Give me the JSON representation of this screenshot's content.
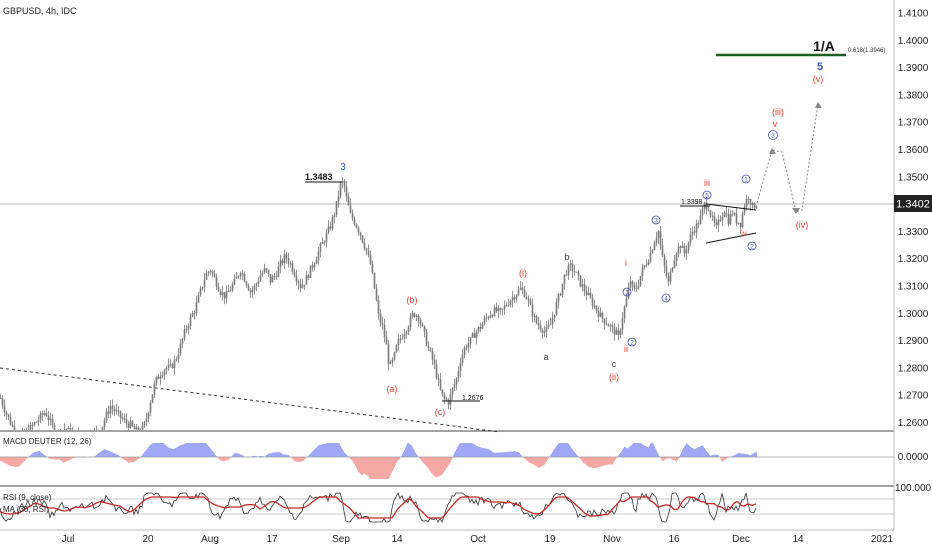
{
  "header": {
    "symbol_line": "GBPUSD, 4h, IDC"
  },
  "price_axis": {
    "ticks": [
      "1.4100",
      "1.4000",
      "1.3900",
      "1.3800",
      "1.3700",
      "1.3600",
      "1.3500",
      "1.3400",
      "1.3300",
      "1.3200",
      "1.3100",
      "1.3000",
      "1.2900",
      "1.2800",
      "1.2700",
      "1.2600"
    ],
    "current_price": "1.3402"
  },
  "time_axis": {
    "ticks": [
      "Jul",
      "20",
      "Aug",
      "17",
      "Sep",
      "14",
      "Oct",
      "19",
      "Nov",
      "16",
      "Dec",
      "14",
      "2021"
    ]
  },
  "macd_pane": {
    "label": "MACD DEUTER (12, 26)",
    "zero_label": "0.0000"
  },
  "rsi_pane": {
    "label": "RSI (9, close)",
    "ma_label": "MA (30, RSI)",
    "level_label": "100.000"
  },
  "annotations": {
    "fib_target": "1/A",
    "fib_text": "0.618(1.3946)",
    "wave_5": "5",
    "wave_v_paren": "(v)",
    "wave_iii_paren": "(iii)",
    "wave_v_small": "v",
    "wave_iv_paren": "(iv)",
    "wave_iii_roman": "iii",
    "wave_iv_roman": "iv",
    "wave_i_roman": "i",
    "wave_ii_roman": "ii",
    "wave_ii_paren": "(ii)",
    "wave_i_paren": "(i)",
    "wave_a_paren": "(a)",
    "wave_b_paren": "(b)",
    "wave_c_paren": "(c)",
    "wave_a": "a",
    "wave_b": "b",
    "wave_c": "c",
    "wave_3": "3",
    "circ_1": "1",
    "circ_2": "2",
    "circ_3": "3",
    "circ_4": "4",
    "circ_5": "5",
    "circ_3b": "3",
    "circ_2b": "2",
    "circ_1b": "1",
    "price_13483": "1.3483",
    "price_13398": "1.3398",
    "price_12676": "1.2676"
  },
  "colors": {
    "candles": "#787878",
    "wave_red": "#e53935",
    "wave_blue": "#3f51b5",
    "macd_pos": "#9fa8f5",
    "macd_neg": "#f6a8a5",
    "rsi_line": "#333333",
    "rsi_ma": "#c62828",
    "fib_line": "#1b5e20"
  },
  "chart_data": {
    "type": "candlestick",
    "title": "GBPUSD, 4h, IDC",
    "y_range": [
      1.257,
      1.415
    ],
    "last_price": 1.3402,
    "key_levels": [
      {
        "label": "1.3483",
        "value": 1.3483
      },
      {
        "label": "1.3398",
        "value": 1.3398
      },
      {
        "label": "1.2676",
        "value": 1.2676
      },
      {
        "label": "0.618(1.3946)",
        "value": 1.3946
      }
    ],
    "price_path": [
      [
        0,
        1.269
      ],
      [
        5,
        1.264
      ],
      [
        10,
        1.26
      ],
      [
        15,
        1.256
      ],
      [
        20,
        1.255
      ],
      [
        25,
        1.256
      ],
      [
        30,
        1.258
      ],
      [
        35,
        1.26
      ],
      [
        40,
        1.262
      ],
      [
        45,
        1.264
      ],
      [
        50,
        1.26
      ],
      [
        55,
        1.256
      ],
      [
        60,
        1.256
      ],
      [
        65,
        1.258
      ],
      [
        70,
        1.256
      ],
      [
        80,
        1.255
      ],
      [
        90,
        1.256
      ],
      [
        100,
        1.257
      ],
      [
        105,
        1.262
      ],
      [
        110,
        1.266
      ],
      [
        115,
        1.264
      ],
      [
        120,
        1.262
      ],
      [
        125,
        1.26
      ],
      [
        130,
        1.259
      ],
      [
        135,
        1.257
      ],
      [
        140,
        1.256
      ],
      [
        145,
        1.26
      ],
      [
        150,
        1.268
      ],
      [
        155,
        1.275
      ],
      [
        160,
        1.278
      ],
      [
        165,
        1.28
      ],
      [
        170,
        1.28
      ],
      [
        175,
        1.283
      ],
      [
        180,
        1.288
      ],
      [
        185,
        1.294
      ],
      [
        190,
        1.298
      ],
      [
        195,
        1.302
      ],
      [
        200,
        1.308
      ],
      [
        205,
        1.314
      ],
      [
        210,
        1.316
      ],
      [
        215,
        1.312
      ],
      [
        220,
        1.308
      ],
      [
        225,
        1.306
      ],
      [
        230,
        1.309
      ],
      [
        235,
        1.312
      ],
      [
        240,
        1.316
      ],
      [
        245,
        1.312
      ],
      [
        250,
        1.308
      ],
      [
        255,
        1.31
      ],
      [
        260,
        1.314
      ],
      [
        265,
        1.316
      ],
      [
        270,
        1.312
      ],
      [
        275,
        1.314
      ],
      [
        280,
        1.318
      ],
      [
        285,
        1.321
      ],
      [
        290,
        1.318
      ],
      [
        295,
        1.314
      ],
      [
        300,
        1.31
      ],
      [
        305,
        1.312
      ],
      [
        310,
        1.316
      ],
      [
        315,
        1.32
      ],
      [
        320,
        1.324
      ],
      [
        325,
        1.328
      ],
      [
        330,
        1.332
      ],
      [
        335,
        1.338
      ],
      [
        340,
        1.347
      ],
      [
        343,
        1.3483
      ],
      [
        346,
        1.342
      ],
      [
        350,
        1.336
      ],
      [
        355,
        1.333
      ],
      [
        360,
        1.329
      ],
      [
        365,
        1.324
      ],
      [
        370,
        1.318
      ],
      [
        375,
        1.307
      ],
      [
        378,
        1.299
      ],
      [
        382,
        1.295
      ],
      [
        386,
        1.288
      ],
      [
        389,
        1.28
      ],
      [
        393,
        1.283
      ],
      [
        397,
        1.289
      ],
      [
        402,
        1.292
      ],
      [
        408,
        1.296
      ],
      [
        413,
        1.3
      ],
      [
        418,
        1.299
      ],
      [
        423,
        1.293
      ],
      [
        428,
        1.287
      ],
      [
        433,
        1.282
      ],
      [
        437,
        1.276
      ],
      [
        441,
        1.27
      ],
      [
        445,
        1.268
      ],
      [
        448,
        1.2676
      ],
      [
        452,
        1.272
      ],
      [
        456,
        1.276
      ],
      [
        460,
        1.283
      ],
      [
        465,
        1.288
      ],
      [
        470,
        1.29
      ],
      [
        475,
        1.293
      ],
      [
        480,
        1.295
      ],
      [
        485,
        1.298
      ],
      [
        490,
        1.3
      ],
      [
        495,
        1.301
      ],
      [
        500,
        1.3
      ],
      [
        505,
        1.303
      ],
      [
        510,
        1.305
      ],
      [
        515,
        1.307
      ],
      [
        520,
        1.309
      ],
      [
        525,
        1.307
      ],
      [
        530,
        1.302
      ],
      [
        535,
        1.297
      ],
      [
        540,
        1.295
      ],
      [
        545,
        1.293
      ],
      [
        550,
        1.296
      ],
      [
        555,
        1.302
      ],
      [
        560,
        1.308
      ],
      [
        565,
        1.315
      ],
      [
        570,
        1.317
      ],
      [
        575,
        1.315
      ],
      [
        580,
        1.311
      ],
      [
        585,
        1.308
      ],
      [
        590,
        1.305
      ],
      [
        595,
        1.302
      ],
      [
        600,
        1.299
      ],
      [
        605,
        1.297
      ],
      [
        610,
        1.295
      ],
      [
        615,
        1.293
      ],
      [
        618,
        1.291
      ],
      [
        622,
        1.299
      ],
      [
        626,
        1.305
      ],
      [
        630,
        1.312
      ],
      [
        633,
        1.308
      ],
      [
        637,
        1.31
      ],
      [
        641,
        1.315
      ],
      [
        645,
        1.318
      ],
      [
        650,
        1.322
      ],
      [
        655,
        1.328
      ],
      [
        658,
        1.33
      ],
      [
        661,
        1.322
      ],
      [
        665,
        1.315
      ],
      [
        668,
        1.311
      ],
      [
        672,
        1.318
      ],
      [
        676,
        1.323
      ],
      [
        680,
        1.325
      ],
      [
        684,
        1.322
      ],
      [
        688,
        1.326
      ],
      [
        692,
        1.33
      ],
      [
        696,
        1.332
      ],
      [
        700,
        1.335
      ],
      [
        704,
        1.3398
      ],
      [
        708,
        1.339
      ],
      [
        712,
        1.334
      ],
      [
        716,
        1.331
      ],
      [
        720,
        1.335
      ],
      [
        724,
        1.338
      ],
      [
        728,
        1.334
      ],
      [
        732,
        1.337
      ],
      [
        736,
        1.334
      ],
      [
        740,
        1.333
      ],
      [
        744,
        1.34
      ],
      [
        748,
        1.343
      ],
      [
        752,
        1.339
      ],
      [
        756,
        1.3402
      ]
    ]
  }
}
